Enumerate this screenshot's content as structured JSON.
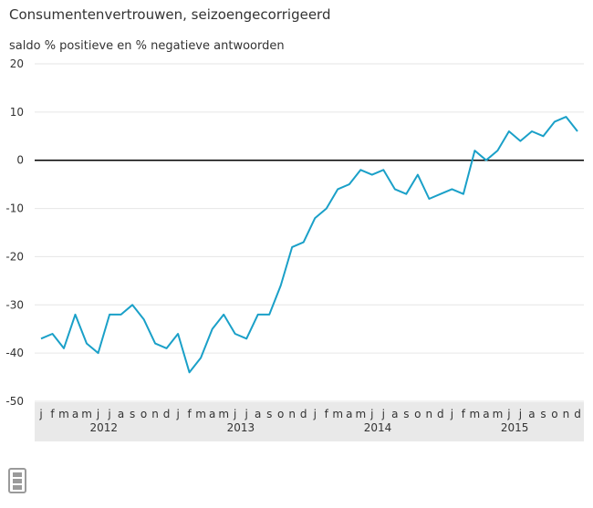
{
  "title": "Consumentenvertrouwen, seizoengecorrigeerd",
  "chart_data": {
    "type": "line",
    "title": "Consumentenvertrouwen, seizoengecorrigeerd",
    "ylabel": "saldo % positieve en % negatieve antwoorden",
    "xlabel": "",
    "ylim": [
      -50,
      20
    ],
    "yticks": [
      "20",
      "10",
      "0",
      "-10",
      "-20",
      "-30",
      "-40",
      "-50"
    ],
    "grid": true,
    "legend": "none",
    "month_labels": [
      "j",
      "f",
      "m",
      "a",
      "m",
      "j",
      "j",
      "a",
      "s",
      "o",
      "n",
      "d"
    ],
    "years": [
      "2012",
      "2013",
      "2014",
      "2015"
    ],
    "series": [
      {
        "color": "#1aa0c8",
        "values": [
          -37,
          -36,
          -39,
          -32,
          -38,
          -40,
          -32,
          -32,
          -30,
          -33,
          -38,
          -39,
          -36,
          -44,
          -41,
          -35,
          -32,
          -36,
          -37,
          -32,
          -32,
          -26,
          -18,
          -17,
          -12,
          -10,
          -6,
          -5,
          -2,
          -3,
          -2,
          -6,
          -7,
          -3,
          -8,
          -7,
          -6,
          -7,
          2,
          0,
          2,
          6,
          4,
          6,
          5,
          8,
          9,
          6
        ]
      }
    ],
    "reference_line": {
      "y": 0,
      "color": "#000000"
    },
    "colors": {
      "line": "#1aa0c8",
      "grid": "#e6e6e6",
      "axis_band": "#e9e9e9"
    }
  },
  "logo": {
    "text": "cbs",
    "color": "#9a9a9a"
  }
}
